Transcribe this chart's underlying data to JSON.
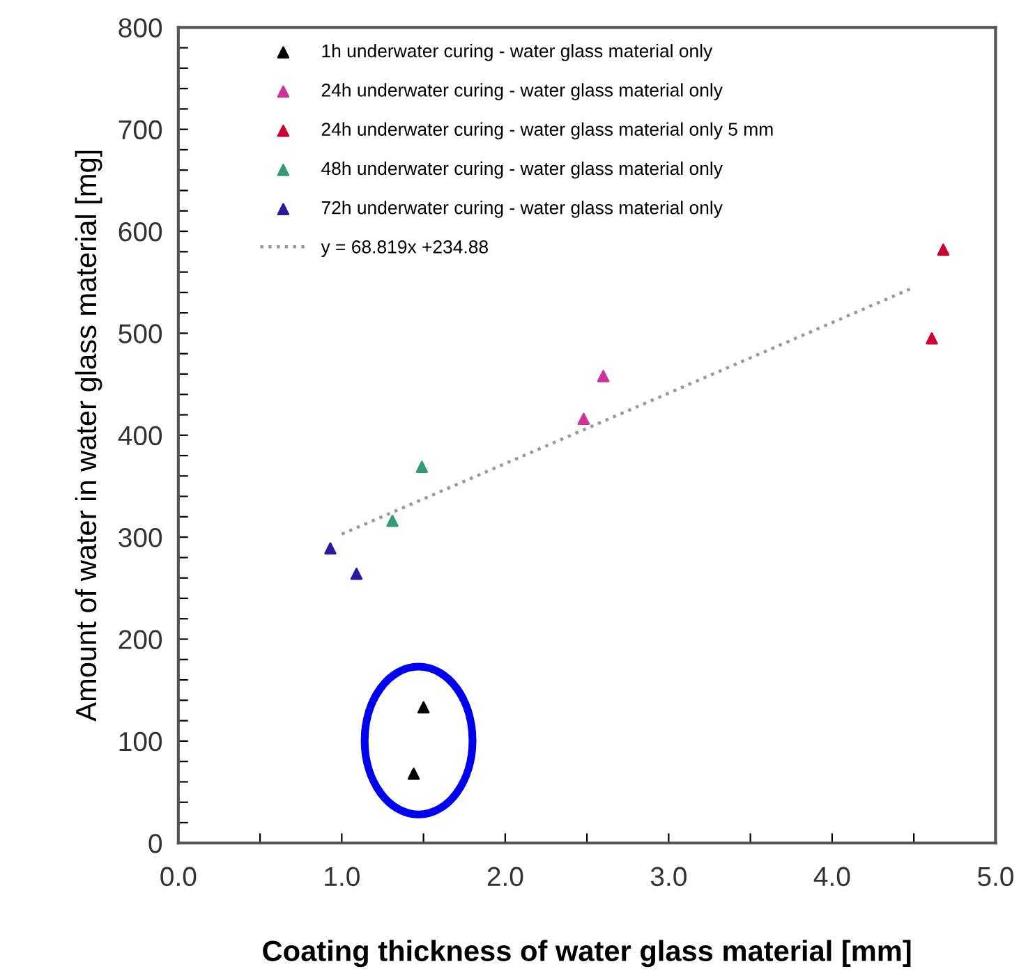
{
  "chart_data": {
    "type": "scatter",
    "xlabel": "Coating thickness of water glass material [mm]",
    "ylabel": "Amount of water in water glass material [mg]",
    "xlim": [
      0,
      5
    ],
    "ylim": [
      0,
      800
    ],
    "xticks": [
      {
        "value": 0,
        "label": "0.0"
      },
      {
        "value": 0.5,
        "label": null
      },
      {
        "value": 1,
        "label": "1.0"
      },
      {
        "value": 1.5,
        "label": null
      },
      {
        "value": 2,
        "label": "2.0"
      },
      {
        "value": 2.5,
        "label": null
      },
      {
        "value": 3,
        "label": "3.0"
      },
      {
        "value": 3.5,
        "label": null
      },
      {
        "value": 4,
        "label": "4.0"
      },
      {
        "value": 4.5,
        "label": null
      },
      {
        "value": 5,
        "label": "5.0"
      }
    ],
    "yticks": [
      0,
      {
        "value": 20,
        "label": null
      },
      {
        "value": 40,
        "label": null
      },
      {
        "value": 60,
        "label": null
      },
      {
        "value": 80,
        "label": null
      },
      100,
      {
        "value": 120,
        "label": null
      },
      {
        "value": 140,
        "label": null
      },
      {
        "value": 160,
        "label": null
      },
      {
        "value": 180,
        "label": null
      },
      200,
      {
        "value": 220,
        "label": null
      },
      {
        "value": 240,
        "label": null
      },
      {
        "value": 260,
        "label": null
      },
      {
        "value": 280,
        "label": null
      },
      300,
      {
        "value": 320,
        "label": null
      },
      {
        "value": 340,
        "label": null
      },
      {
        "value": 360,
        "label": null
      },
      {
        "value": 380,
        "label": null
      },
      400,
      {
        "value": 420,
        "label": null
      },
      {
        "value": 440,
        "label": null
      },
      {
        "value": 460,
        "label": null
      },
      {
        "value": 480,
        "label": null
      },
      500,
      {
        "value": 520,
        "label": null
      },
      {
        "value": 540,
        "label": null
      },
      {
        "value": 560,
        "label": null
      },
      {
        "value": 580,
        "label": null
      },
      600,
      {
        "value": 620,
        "label": null
      },
      {
        "value": 640,
        "label": null
      },
      {
        "value": 660,
        "label": null
      },
      {
        "value": 680,
        "label": null
      },
      700,
      {
        "value": 720,
        "label": null
      },
      {
        "value": 740,
        "label": null
      },
      {
        "value": 760,
        "label": null
      },
      {
        "value": 780,
        "label": null
      },
      800
    ],
    "marker": "triangle",
    "grid": false,
    "legend": "top left",
    "series": [
      {
        "name": "1h underwater curing - water glass material only",
        "color": "#000000",
        "x": [
          1.5,
          1.44
        ],
        "values": [
          133,
          68
        ]
      },
      {
        "name": "24h underwater curing - water glass material only",
        "color": "#cc3399",
        "x": [
          2.48,
          2.6
        ],
        "values": [
          416,
          458
        ]
      },
      {
        "name": "24h underwater curing - water glass material only 5 mm",
        "color": "#cc0033",
        "x": [
          4.61,
          4.68
        ],
        "values": [
          495,
          582
        ]
      },
      {
        "name": "48h underwater curing - water glass material only",
        "color": "#339977",
        "x": [
          1.31,
          1.49
        ],
        "values": [
          316,
          369
        ]
      },
      {
        "name": "72h underwater curing - water glass material only",
        "color": "#2a1aa0",
        "x": [
          0.93,
          1.09
        ],
        "values": [
          289,
          264
        ]
      },
      {
        "name": "y = 68.819x +234.88",
        "type": "line",
        "color": "#999999",
        "line_style": "dotted",
        "marker": "none",
        "x": [
          1.0,
          4.5
        ],
        "values": [
          303,
          545
        ]
      }
    ]
  }
}
